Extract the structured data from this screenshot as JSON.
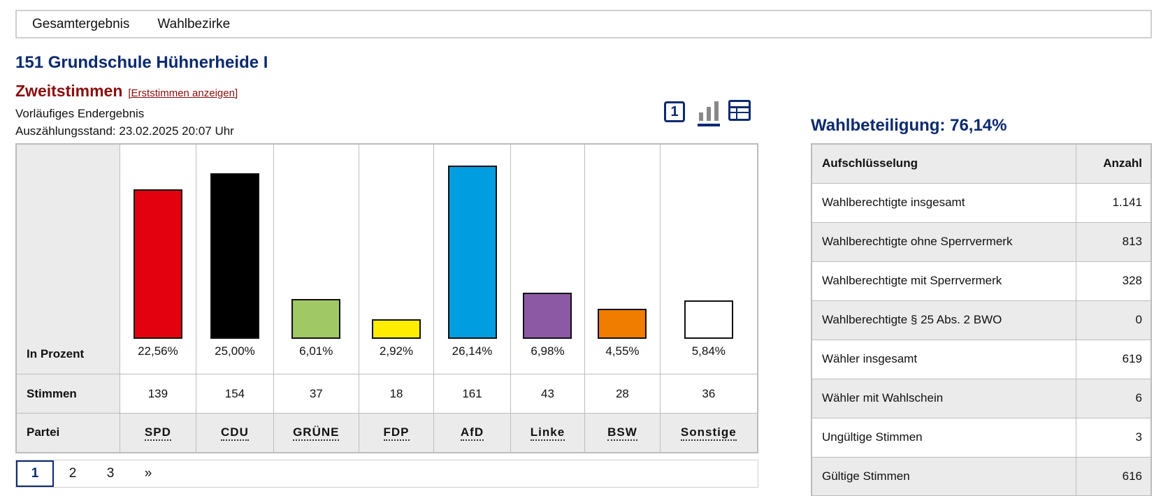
{
  "nav": {
    "items": [
      "Gesamtergebnis",
      "Wahlbezirke"
    ]
  },
  "page": {
    "title": "151 Grundschule Hühnerheide I",
    "subtitle": "Zweitstimmen",
    "subtitle_link": "[Erststimmen anzeigen]",
    "status": "Vorläufiges Endergebnis",
    "count_state": "Auszählungsstand: 23.02.2025 20:07 Uhr"
  },
  "view_icons": {
    "one_label": "1",
    "icons": [
      "single-result-icon",
      "bar-chart-icon",
      "table-view-icon"
    ],
    "active": "bar-chart-icon"
  },
  "chart": {
    "row_labels": {
      "percent": "In Prozent",
      "votes": "Stimmen",
      "party": "Partei"
    },
    "parties": [
      {
        "name": "SPD",
        "percent_label": "22,56%",
        "percent": 22.56,
        "votes": "139",
        "color": "#e3000f"
      },
      {
        "name": "CDU",
        "percent_label": "25,00%",
        "percent": 25.0,
        "votes": "154",
        "color": "#000000"
      },
      {
        "name": "GRÜNE",
        "percent_label": "6,01%",
        "percent": 6.01,
        "votes": "37",
        "color": "#a0c864"
      },
      {
        "name": "FDP",
        "percent_label": "2,92%",
        "percent": 2.92,
        "votes": "18",
        "color": "#ffed00"
      },
      {
        "name": "AfD",
        "percent_label": "26,14%",
        "percent": 26.14,
        "votes": "161",
        "color": "#009ee0"
      },
      {
        "name": "Linke",
        "percent_label": "6,98%",
        "percent": 6.98,
        "votes": "43",
        "color": "#8c5aa5"
      },
      {
        "name": "BSW",
        "percent_label": "4,55%",
        "percent": 4.55,
        "votes": "28",
        "color": "#f07d00"
      },
      {
        "name": "Sonstige",
        "percent_label": "5,84%",
        "percent": 5.84,
        "votes": "36",
        "color": "#ffffff"
      }
    ]
  },
  "chart_data": {
    "type": "bar",
    "categories": [
      "SPD",
      "CDU",
      "GRÜNE",
      "FDP",
      "AfD",
      "Linke",
      "BSW",
      "Sonstige"
    ],
    "values": [
      22.56,
      25.0,
      6.01,
      2.92,
      26.14,
      6.98,
      4.55,
      5.84
    ],
    "title": "",
    "xlabel": "Partei",
    "ylabel": "In Prozent"
  },
  "pagination": {
    "pages": [
      "1",
      "2",
      "3"
    ],
    "next": "»",
    "active": "1"
  },
  "turnout": {
    "title": "Wahlbeteiligung: 76,14%",
    "headers": {
      "label": "Aufschlüsselung",
      "value": "Anzahl"
    },
    "rows": [
      {
        "label": "Wahlberechtigte insgesamt",
        "value": "1.141"
      },
      {
        "label": "Wahlberechtigte ohne Sperrvermerk",
        "value": "813"
      },
      {
        "label": "Wahlberechtigte mit Sperrvermerk",
        "value": "328"
      },
      {
        "label": "Wahlberechtigte § 25 Abs. 2 BWO",
        "value": "0"
      },
      {
        "label": "Wähler insgesamt",
        "value": "619"
      },
      {
        "label": "Wähler mit Wahlschein",
        "value": "6"
      },
      {
        "label": "Ungültige Stimmen",
        "value": "3"
      },
      {
        "label": "Gültige Stimmen",
        "value": "616"
      }
    ]
  }
}
